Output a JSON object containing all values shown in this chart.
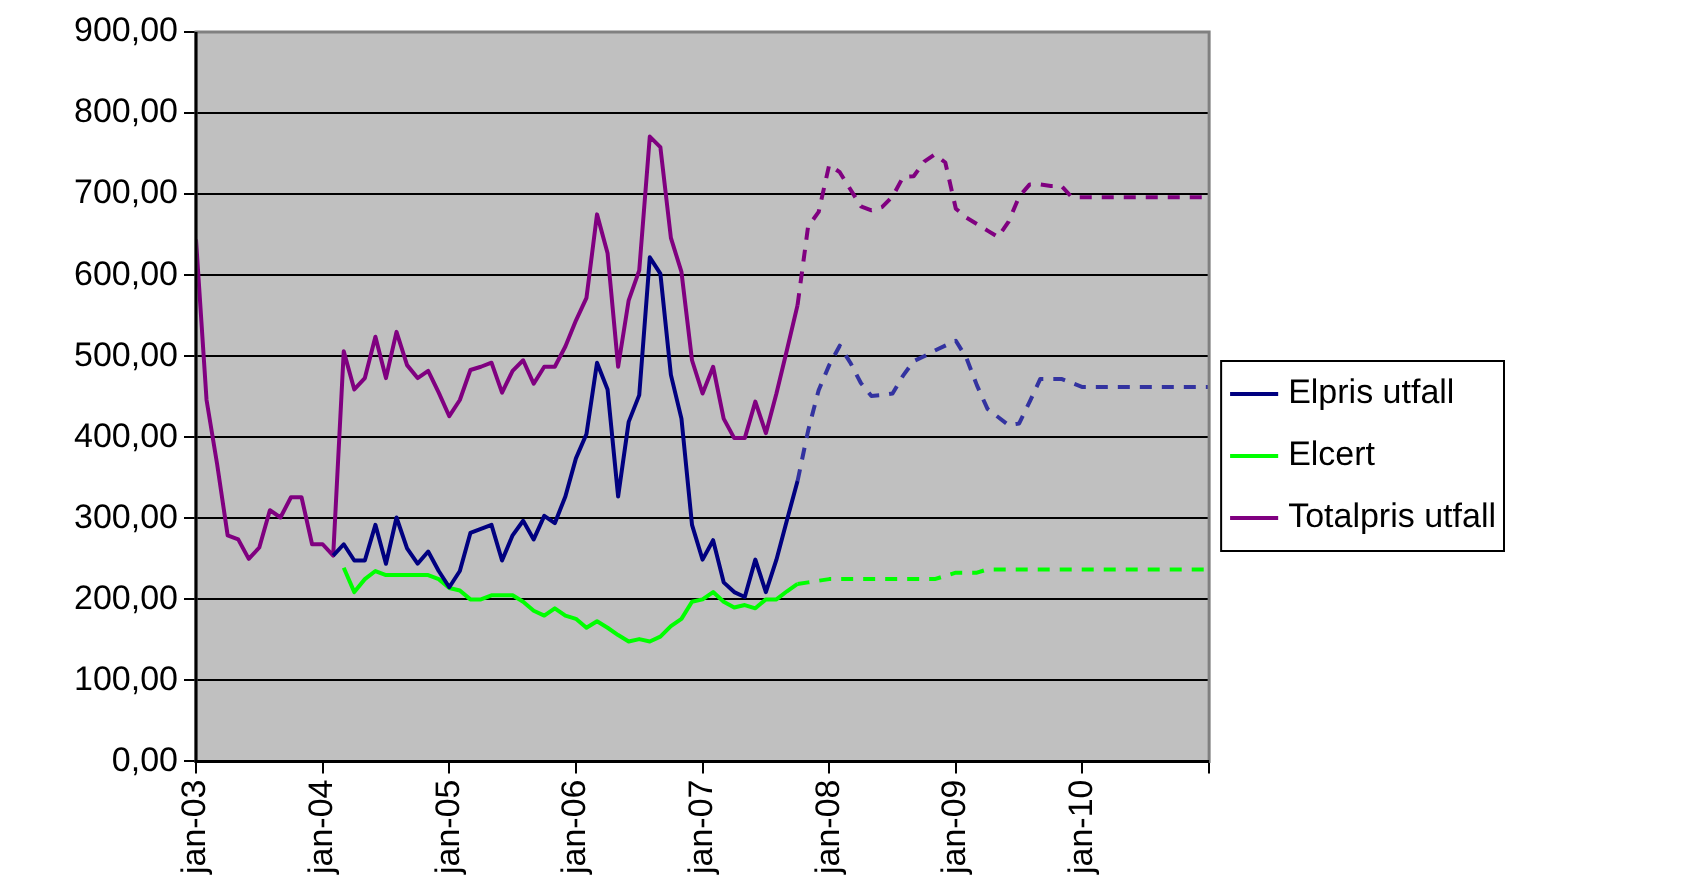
{
  "chart_data": {
    "type": "line",
    "x": [
      "2003-01",
      "2003-02",
      "2003-03",
      "2003-04",
      "2003-05",
      "2003-06",
      "2003-07",
      "2003-08",
      "2003-09",
      "2003-10",
      "2003-11",
      "2003-12",
      "2004-01",
      "2004-02",
      "2004-03",
      "2004-04",
      "2004-05",
      "2004-06",
      "2004-07",
      "2004-08",
      "2004-09",
      "2004-10",
      "2004-11",
      "2004-12",
      "2005-01",
      "2005-02",
      "2005-03",
      "2005-04",
      "2005-05",
      "2005-06",
      "2005-07",
      "2005-08",
      "2005-09",
      "2005-10",
      "2005-11",
      "2005-12",
      "2006-01",
      "2006-02",
      "2006-03",
      "2006-04",
      "2006-05",
      "2006-06",
      "2006-07",
      "2006-08",
      "2006-09",
      "2006-10",
      "2006-11",
      "2006-12",
      "2007-01",
      "2007-02",
      "2007-03",
      "2007-04",
      "2007-05",
      "2007-06",
      "2007-07",
      "2007-08",
      "2007-09",
      "2007-10",
      "2007-11",
      "2007-12",
      "2008-01",
      "2008-02",
      "2008-03",
      "2008-04",
      "2008-05",
      "2008-06",
      "2008-07",
      "2008-08",
      "2008-09",
      "2008-10",
      "2008-11",
      "2008-12",
      "2009-01",
      "2009-02",
      "2009-03",
      "2009-04",
      "2009-05",
      "2009-06",
      "2009-07",
      "2009-08",
      "2009-09",
      "2009-10",
      "2009-11",
      "2009-12",
      "2010-01",
      "2010-02",
      "2010-03",
      "2010-04",
      "2010-05",
      "2010-06",
      "2010-07",
      "2010-08",
      "2010-09",
      "2010-10",
      "2010-11",
      "2010-12",
      "2011-01"
    ],
    "xlim": [
      "2003-01",
      "2011-01"
    ],
    "xticks": [
      {
        "value": "2003-01",
        "label": "jan-03"
      },
      {
        "value": "2004-01",
        "label": "jan-04"
      },
      {
        "value": "2005-01",
        "label": "jan-05"
      },
      {
        "value": "2006-01",
        "label": "jan-06"
      },
      {
        "value": "2007-01",
        "label": "jan-07"
      },
      {
        "value": "2008-01",
        "label": "jan-08"
      },
      {
        "value": "2009-01",
        "label": "jan-09"
      },
      {
        "value": "2010-01",
        "label": "jan-10"
      },
      {
        "value": "2011-01",
        "label": null
      }
    ],
    "ylim": [
      0,
      900
    ],
    "yticks": [
      {
        "value": 0,
        "label": "0,00"
      },
      {
        "value": 100,
        "label": "100,00"
      },
      {
        "value": 200,
        "label": "200,00"
      },
      {
        "value": 300,
        "label": "300,00"
      },
      {
        "value": 400,
        "label": "400,00"
      },
      {
        "value": 500,
        "label": "500,00"
      },
      {
        "value": 600,
        "label": "600,00"
      },
      {
        "value": 700,
        "label": "700,00"
      },
      {
        "value": 800,
        "label": "800,00"
      },
      {
        "value": 900,
        "label": "900,00"
      }
    ],
    "grid": "y",
    "legend": "right",
    "marker": "none",
    "series": [
      {
        "name": "Elpris utfall",
        "color": "#000080",
        "line_style": "solid",
        "values": [
          null,
          null,
          null,
          null,
          null,
          null,
          null,
          null,
          null,
          null,
          null,
          null,
          null,
          254,
          268,
          248,
          248,
          292,
          244,
          301,
          263,
          244,
          259,
          235,
          215,
          235,
          282,
          287,
          292,
          248,
          279,
          297,
          274,
          303,
          294,
          327,
          374,
          404,
          492,
          459,
          327,
          419,
          452,
          622,
          602,
          477,
          423,
          292,
          249,
          273,
          221,
          209,
          203,
          249,
          209,
          249,
          298,
          346,
          null,
          null,
          null,
          null,
          null,
          null,
          null,
          null,
          null,
          null,
          null,
          null,
          null,
          null,
          null,
          null,
          null,
          null,
          null,
          null,
          null,
          null,
          null,
          null,
          null,
          null,
          null,
          null,
          null,
          null,
          null,
          null,
          null,
          null,
          null,
          null,
          null,
          null,
          null
        ]
      },
      {
        "name": "Elcert",
        "color": "#00ff00",
        "line_style": "solid",
        "values": [
          null,
          null,
          null,
          null,
          null,
          null,
          null,
          null,
          null,
          null,
          null,
          null,
          null,
          null,
          239,
          209,
          225,
          235,
          230,
          230,
          230,
          230,
          230,
          225,
          214,
          211,
          200,
          200,
          205,
          205,
          205,
          197,
          186,
          180,
          189,
          180,
          176,
          165,
          173,
          165,
          156,
          148,
          151,
          148,
          154,
          167,
          176,
          197,
          200,
          209,
          197,
          190,
          193,
          189,
          200,
          200,
          210,
          219,
          null,
          null,
          null,
          null,
          null,
          null,
          null,
          null,
          null,
          null,
          null,
          null,
          null,
          null,
          null,
          null,
          null,
          null,
          null,
          null,
          null,
          null,
          null,
          null,
          null,
          null,
          null,
          null,
          null,
          null,
          null,
          null,
          null,
          null,
          null,
          null,
          null,
          null,
          null
        ]
      },
      {
        "name": "Totalpris utfall",
        "color": "#800080",
        "line_style": "solid",
        "values": [
          644,
          446,
          367,
          279,
          274,
          250,
          264,
          310,
          301,
          326,
          326,
          268,
          268,
          254,
          506,
          459,
          473,
          524,
          473,
          530,
          489,
          473,
          482,
          455,
          426,
          446,
          483,
          487,
          492,
          455,
          482,
          495,
          466,
          487,
          487,
          512,
          544,
          572,
          675,
          627,
          487,
          569,
          606,
          771,
          758,
          646,
          604,
          495,
          454,
          487,
          423,
          399,
          399,
          444,
          405,
          454,
          508,
          563,
          null,
          null,
          null,
          null,
          null,
          null,
          null,
          null,
          null,
          null,
          null,
          null,
          null,
          null,
          null,
          null,
          null,
          null,
          null,
          null,
          null,
          null,
          null,
          null,
          null,
          null,
          null,
          null,
          null,
          null,
          null,
          null,
          null,
          null,
          null,
          null,
          null,
          null,
          null
        ]
      },
      {
        "color": "#3333a0",
        "line_style": "dashed",
        "values": [
          null,
          null,
          null,
          null,
          null,
          null,
          null,
          null,
          null,
          null,
          null,
          null,
          null,
          null,
          null,
          null,
          null,
          null,
          null,
          null,
          null,
          null,
          null,
          null,
          null,
          null,
          null,
          null,
          null,
          null,
          null,
          null,
          null,
          null,
          null,
          null,
          null,
          null,
          null,
          null,
          null,
          null,
          null,
          null,
          null,
          null,
          null,
          null,
          null,
          null,
          null,
          null,
          null,
          null,
          null,
          null,
          null,
          346,
          408,
          458,
          489,
          513,
          492,
          467,
          451,
          452,
          454,
          476,
          494,
          500,
          507,
          513,
          519,
          498,
          464,
          435,
          425,
          415,
          417,
          444,
          472,
          472,
          472,
          467,
          462,
          462,
          462,
          462,
          462,
          462,
          462,
          462,
          462,
          462,
          462,
          462,
          462
        ]
      },
      {
        "color": "#00ff00",
        "line_style": "dashed",
        "values": [
          null,
          null,
          null,
          null,
          null,
          null,
          null,
          null,
          null,
          null,
          null,
          null,
          null,
          null,
          null,
          null,
          null,
          null,
          null,
          null,
          null,
          null,
          null,
          null,
          null,
          null,
          null,
          null,
          null,
          null,
          null,
          null,
          null,
          null,
          null,
          null,
          null,
          null,
          null,
          null,
          null,
          null,
          null,
          null,
          null,
          null,
          null,
          null,
          null,
          null,
          null,
          null,
          null,
          null,
          null,
          null,
          null,
          219,
          221,
          223,
          225,
          225,
          225,
          225,
          225,
          225,
          225,
          225,
          225,
          225,
          225,
          229,
          233,
          233,
          233,
          237,
          237,
          237,
          237,
          237,
          237,
          237,
          237,
          237,
          237,
          237,
          237,
          237,
          237,
          237,
          237,
          237,
          237,
          237,
          237,
          237,
          237
        ]
      },
      {
        "color": "#800080",
        "line_style": "dashed",
        "values": [
          null,
          null,
          null,
          null,
          null,
          null,
          null,
          null,
          null,
          null,
          null,
          null,
          null,
          null,
          null,
          null,
          null,
          null,
          null,
          null,
          null,
          null,
          null,
          null,
          null,
          null,
          null,
          null,
          null,
          null,
          null,
          null,
          null,
          null,
          null,
          null,
          null,
          null,
          null,
          null,
          null,
          null,
          null,
          null,
          null,
          null,
          null,
          null,
          null,
          null,
          null,
          null,
          null,
          null,
          null,
          null,
          null,
          563,
          660,
          678,
          736,
          727,
          706,
          685,
          680,
          684,
          697,
          721,
          722,
          740,
          749,
          739,
          682,
          671,
          663,
          655,
          647,
          666,
          697,
          712,
          712,
          710,
          710,
          696,
          696,
          696,
          696,
          696,
          696,
          696,
          696,
          696,
          696,
          696,
          696,
          696,
          696
        ]
      }
    ]
  }
}
